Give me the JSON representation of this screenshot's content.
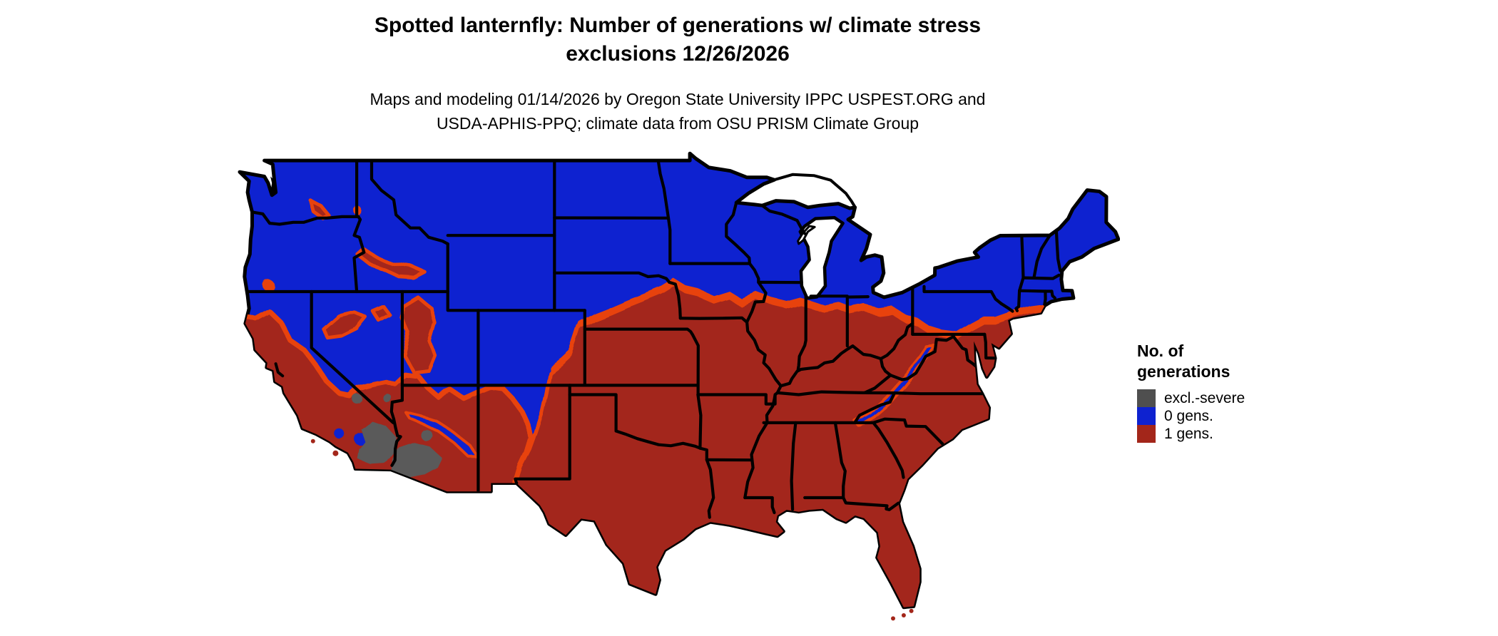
{
  "title": {
    "line1": "Spotted lanternfly: Number of generations w/ climate stress",
    "line2": "exclusions 12/26/2026"
  },
  "subtitle": {
    "line1": "Maps and modeling 01/14/2026 by Oregon State University IPPC USPEST.ORG and",
    "line2": "USDA-APHIS-PPQ; climate data from OSU PRISM Climate Group"
  },
  "legend": {
    "title_line1": "No. of",
    "title_line2": "generations",
    "items": [
      {
        "label": "excl.-severe",
        "color": "#4F4F4F"
      },
      {
        "label": "0 gens.",
        "color": "#0E22D0"
      },
      {
        "label": "1 gens.",
        "color": "#A3261A"
      }
    ]
  },
  "map": {
    "region": "Continental United States",
    "colors": {
      "zero_generations": "#0E22D0",
      "one_generation": "#A3261A",
      "transition_fringe": "#E8430D",
      "climate_exclusion": "#5A5A5A",
      "state_borders": "#000000",
      "water": "#FFFFFF"
    }
  }
}
